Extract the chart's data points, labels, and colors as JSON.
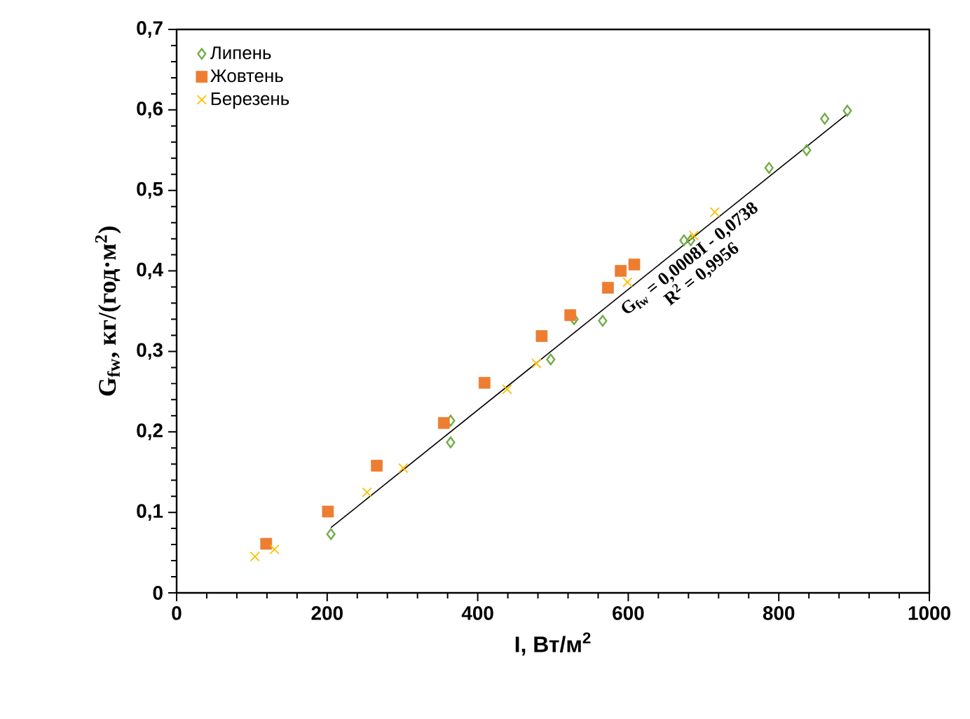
{
  "chart_data": {
    "type": "scatter",
    "xlabel": "I, Вт/м$^{2}$",
    "ylabel": "G$_{fw}$, кг/(год·м$^{2}$)",
    "annotations": [
      "G$_{fw}$ = 0,0008I - 0,0738",
      "R$^{2}$ = 0,9956"
    ],
    "series": [
      {
        "name": "Липень",
        "color": "#70ad47",
        "marker": "diamond",
        "x": [
          205,
          364,
          364,
          497,
          528,
          566,
          674,
          683,
          787,
          837,
          861,
          891
        ],
        "values": [
          0.073,
          0.187,
          0.214,
          0.29,
          0.34,
          0.338,
          0.438,
          0.438,
          0.528,
          0.55,
          0.589,
          0.599
        ]
      },
      {
        "name": "Жовтень",
        "color": "#ed7d31",
        "marker": "square",
        "x": [
          119,
          201,
          266,
          355,
          409,
          485,
          523,
          573,
          590,
          608
        ],
        "values": [
          0.061,
          0.101,
          0.158,
          0.211,
          0.261,
          0.319,
          0.345,
          0.379,
          0.4,
          0.408
        ]
      },
      {
        "name": "Березень",
        "color": "#ffc000",
        "marker": "cross",
        "x": [
          104,
          130,
          253,
          301,
          439,
          478,
          599,
          687,
          715
        ],
        "values": [
          0.045,
          0.054,
          0.125,
          0.155,
          0.253,
          0.285,
          0.386,
          0.444,
          0.473
        ]
      },
      {
        "type": "line",
        "color": "#000000",
        "marker": "none",
        "x": [
          205,
          891
        ],
        "values": [
          0.081,
          0.595
        ]
      }
    ],
    "xlim": [
      0,
      1000
    ],
    "xticks": [
      0,
      200,
      400,
      600,
      800,
      1000
    ],
    "ylim": [
      0,
      0.7
    ],
    "yticks": [
      {
        "value": 0,
        "label": "0"
      },
      {
        "value": 0.1,
        "label": "0,1"
      },
      {
        "value": 0.2,
        "label": "0,2"
      },
      {
        "value": 0.3,
        "label": "0,3"
      },
      {
        "value": 0.4,
        "label": "0,4"
      },
      {
        "value": 0.5,
        "label": "0,5"
      },
      {
        "value": 0.6,
        "label": "0,6"
      },
      {
        "value": 0.7,
        "label": "0,7"
      }
    ],
    "legend": "top left",
    "grid": false
  }
}
